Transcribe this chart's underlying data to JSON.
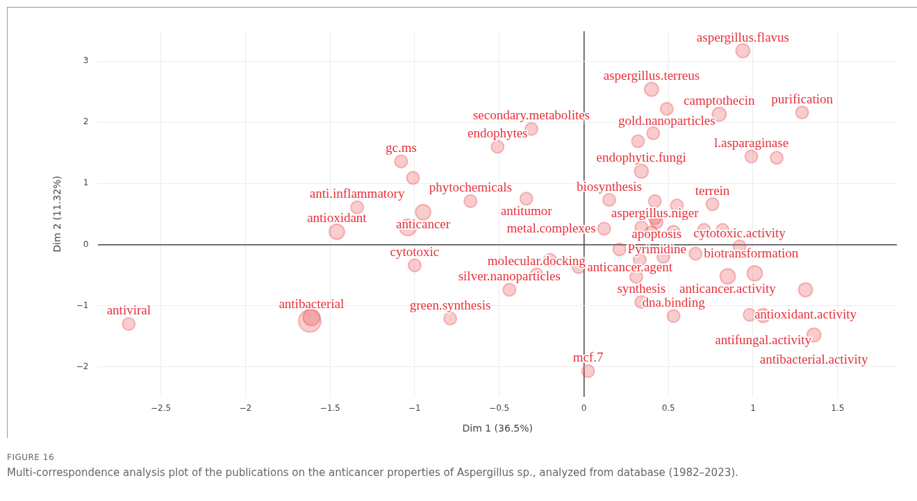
{
  "chart_data": {
    "type": "bubble",
    "xlabel": "Dim 1 (36.5%)",
    "ylabel": "Dim 2 (11.32%)",
    "xlim": [
      -2.87,
      1.85
    ],
    "ylim": [
      -2.49,
      3.49
    ],
    "xticks": [
      {
        "value": -2.5,
        "label": "−2.5"
      },
      {
        "value": -2,
        "label": "−2"
      },
      {
        "value": -1.5,
        "label": "−1.5"
      },
      {
        "value": -1,
        "label": "−1"
      },
      {
        "value": -0.5,
        "label": "−0.5"
      },
      0,
      0.5,
      1,
      1.5
    ],
    "yticks": [
      {
        "value": -2,
        "label": "−2"
      },
      {
        "value": -1,
        "label": "−1"
      },
      0,
      1,
      2,
      3
    ],
    "grid": true,
    "legend": false,
    "series": [
      {
        "color": "#e8474c",
        "x": [
          -2.69,
          -1.62,
          -1.61,
          -1.46,
          -1.34,
          -1.04,
          -0.95,
          -1.08,
          -1.01,
          -1.0,
          -0.67,
          -0.51,
          -0.31,
          -0.34,
          -0.79,
          -0.44,
          -0.28,
          -0.2,
          -0.03,
          0.025,
          0.15,
          0.12,
          0.94,
          0.4,
          0.49,
          0.8,
          1.29,
          0.41,
          0.32,
          0.99,
          1.14,
          0.34,
          0.42,
          0.55,
          0.76,
          0.42,
          0.43,
          0.34,
          0.4,
          0.53,
          0.71,
          0.82,
          0.92,
          0.21,
          0.33,
          0.47,
          0.66,
          0.31,
          0.85,
          1.01,
          1.31,
          0.34,
          0.53,
          0.98,
          1.06,
          1.36
        ],
        "values": [
          -1.3,
          -1.25,
          -1.19,
          0.21,
          0.61,
          0.28,
          0.53,
          1.36,
          1.09,
          -0.34,
          0.71,
          1.6,
          1.89,
          0.75,
          -1.21,
          -0.74,
          -0.49,
          -0.25,
          -0.37,
          -2.07,
          0.73,
          0.26,
          3.17,
          2.54,
          2.22,
          2.13,
          2.16,
          1.82,
          1.69,
          1.44,
          1.42,
          1.2,
          0.71,
          0.64,
          0.66,
          0.43,
          0.37,
          0.28,
          0.2,
          0.21,
          0.24,
          0.24,
          -0.03,
          -0.08,
          -0.25,
          -0.2,
          -0.15,
          -0.53,
          -0.52,
          -0.47,
          -0.74,
          -0.94,
          -1.17,
          -1.15,
          -1.16,
          -1.48
        ],
        "sizes": [
          0.32,
          1,
          0.56,
          0.47,
          0.32,
          0.56,
          0.47,
          0.32,
          0.32,
          0.32,
          0.32,
          0.32,
          0.32,
          0.32,
          0.32,
          0.32,
          0.32,
          0.32,
          0.32,
          0.32,
          0.32,
          0.32,
          0.39,
          0.39,
          0.32,
          0.39,
          0.32,
          0.32,
          0.32,
          0.32,
          0.32,
          0.39,
          0.32,
          0.32,
          0.32,
          0.32,
          0.32,
          0.32,
          0.32,
          0.32,
          0.32,
          0.32,
          0.32,
          0.32,
          0.32,
          0.32,
          0.32,
          0.32,
          0.47,
          0.47,
          0.39,
          0.32,
          0.32,
          0.32,
          0.39,
          0.39
        ]
      }
    ],
    "annotations": [
      {
        "text": "antiviral",
        "x": -2.69,
        "y": -1.3
      },
      {
        "text": "antibacterial",
        "x": -1.61,
        "y": -1.19
      },
      {
        "text": "antioxidant",
        "x": -1.46,
        "y": 0.21
      },
      {
        "text": "anti.inflammatory",
        "x": -1.34,
        "y": 0.61
      },
      {
        "text": "anticancer",
        "x": -0.95,
        "y": 0.53
      },
      {
        "text": "gc.ms",
        "x": -1.08,
        "y": 1.36
      },
      {
        "text": "cytotoxic",
        "x": -1.0,
        "y": -0.34
      },
      {
        "text": "phytochemicals",
        "x": -0.67,
        "y": 0.71
      },
      {
        "text": "endophytes",
        "x": -0.51,
        "y": 1.6
      },
      {
        "text": "secondary.metabolites",
        "x": -0.31,
        "y": 1.89
      },
      {
        "text": "antitumor",
        "x": -0.34,
        "y": 0.75
      },
      {
        "text": "green.synthesis",
        "x": -0.79,
        "y": -1.21
      },
      {
        "text": "silver.nanoparticles",
        "x": -0.44,
        "y": -0.74
      },
      {
        "text": "molecular.docking",
        "x": -0.28,
        "y": -0.49
      },
      {
        "text": "anticancer.agent",
        "x": -0.03,
        "y": -0.37
      },
      {
        "text": "mcf.7",
        "x": 0.025,
        "y": -2.07
      },
      {
        "text": "biosynthesis",
        "x": 0.15,
        "y": 0.73
      },
      {
        "text": "aspergillus.flavus",
        "x": 0.94,
        "y": 3.17
      },
      {
        "text": "aspergillus.terreus",
        "x": 0.4,
        "y": 2.54
      },
      {
        "text": "camptothecin",
        "x": 0.8,
        "y": 2.13
      },
      {
        "text": "purification",
        "x": 1.29,
        "y": 2.16
      },
      {
        "text": "gold.nanoparticles",
        "x": 0.49,
        "y": 2.22
      },
      {
        "text": "l.asparaginase",
        "x": 0.99,
        "y": 1.44
      },
      {
        "text": "endophytic.fungi",
        "x": 0.34,
        "y": 1.2
      },
      {
        "text": "aspergillus.niger",
        "x": 0.42,
        "y": 0.71
      },
      {
        "text": "terrein",
        "x": 0.76,
        "y": 0.66
      },
      {
        "text": "apoptosis",
        "x": 0.43,
        "y": 0.37
      },
      {
        "text": "metal.complexes",
        "x": 0.12,
        "y": 0.26
      },
      {
        "text": "Pyrimidine",
        "x": 0.21,
        "y": -0.08
      },
      {
        "text": "biotransformation",
        "x": 0.66,
        "y": -0.15
      },
      {
        "text": "cytotoxic.activity",
        "x": 0.92,
        "y": -0.03
      },
      {
        "text": "anticancer.activity",
        "x": 0.85,
        "y": -0.52
      },
      {
        "text": "antioxidant.activity",
        "x": 1.31,
        "y": -0.74
      },
      {
        "text": "synthesis",
        "x": 0.34,
        "y": -0.94
      },
      {
        "text": "dna.binding",
        "x": 0.53,
        "y": -1.17
      },
      {
        "text": "antifungal.activity",
        "x": 1.06,
        "y": -1.16
      },
      {
        "text": "antibacterial.activity",
        "x": 1.36,
        "y": -1.48
      },
      "FIGURE 16",
      "Multi-correspondence analysis plot of the publications on the anticancer properties of Aspergillus sp., analyzed from database (1982–2023)."
    ]
  }
}
